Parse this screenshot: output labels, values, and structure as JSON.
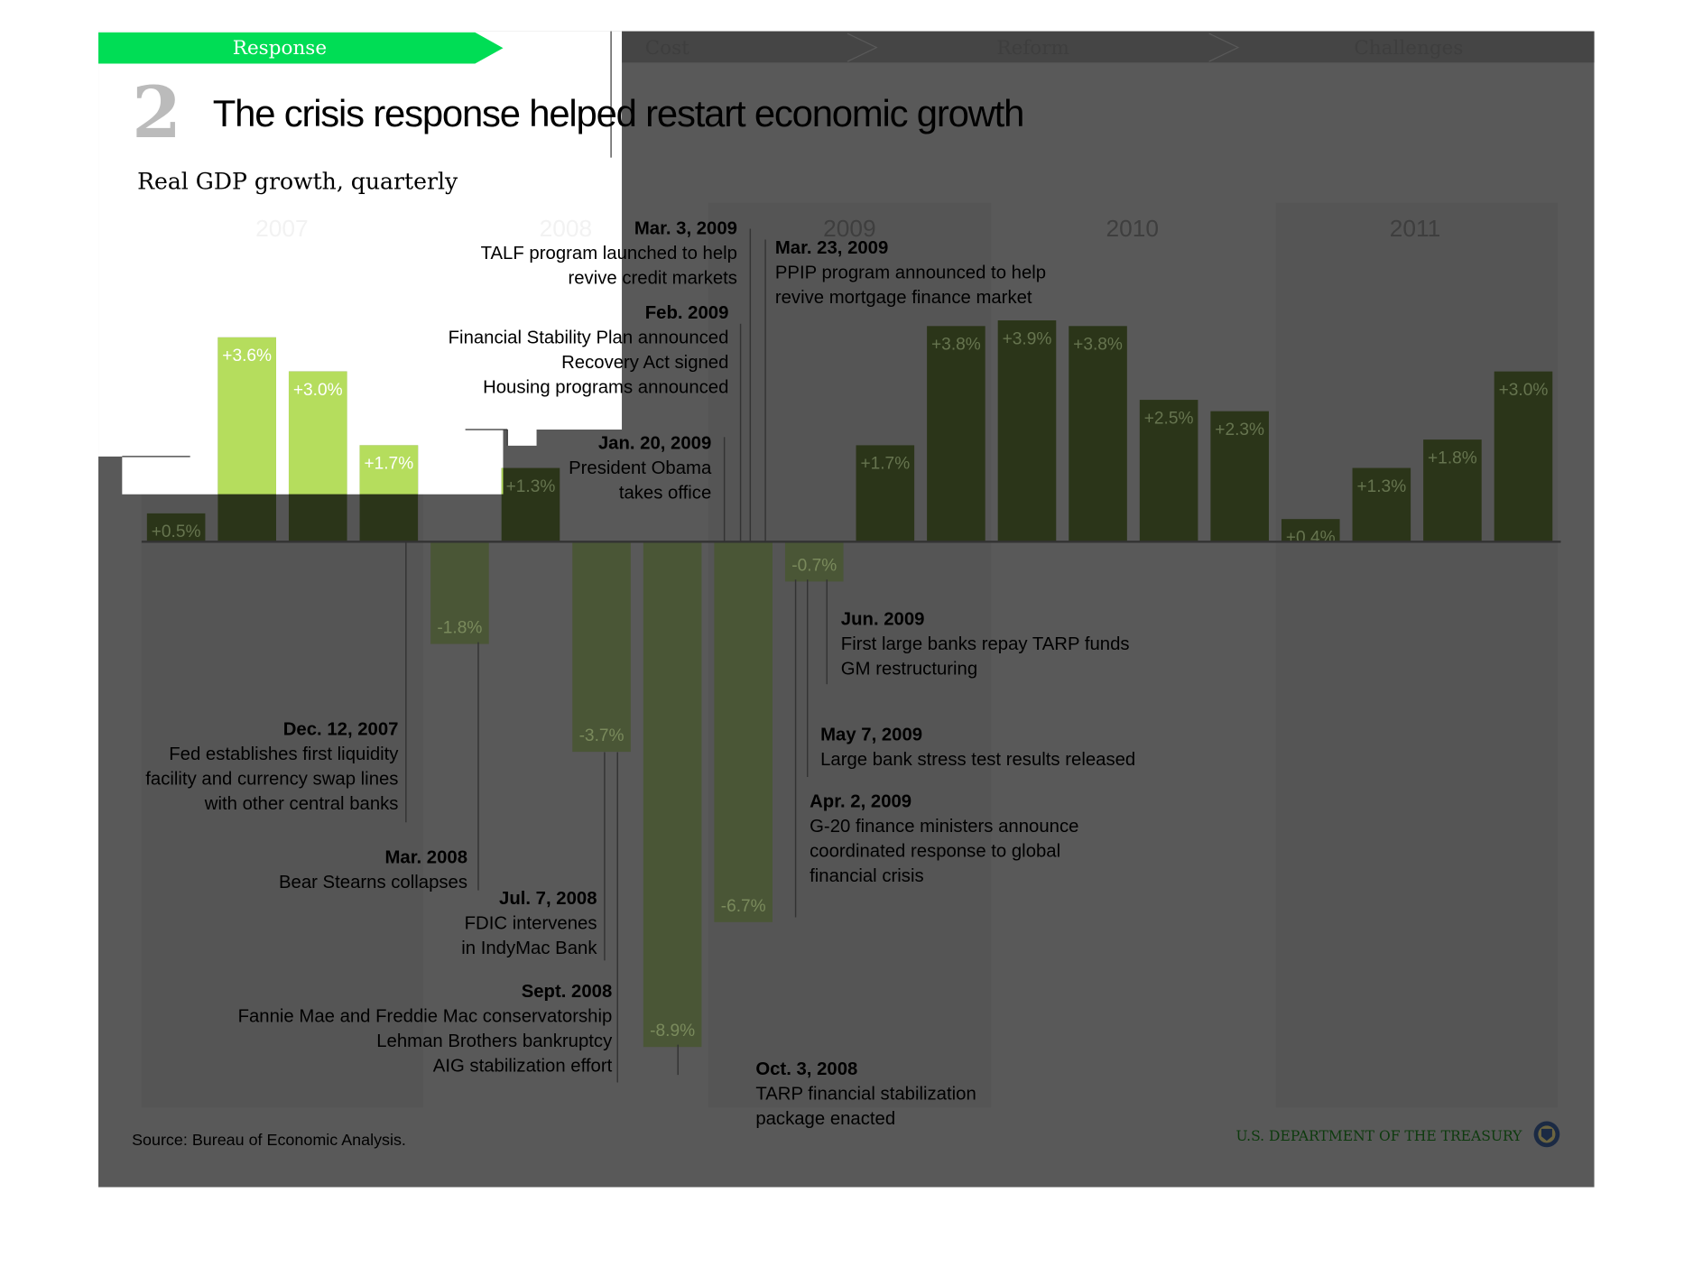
{
  "nav": {
    "tabs": [
      {
        "label": "Response",
        "active": true
      },
      {
        "label": "Cost",
        "active": false
      },
      {
        "label": "Reform",
        "active": false
      },
      {
        "label": "Challenges",
        "active": false
      }
    ]
  },
  "header": {
    "number": "2",
    "title": "The crisis response helped restart economic growth",
    "subtitle": "Real GDP growth, quarterly"
  },
  "colors": {
    "tab_active": "#00dd55",
    "bar_highlight": "#b5dd5d",
    "bar_positive": "#2b3519",
    "bar_negative": "#4a5636",
    "overlay": "#595959"
  },
  "chart_data": {
    "type": "bar",
    "title": "Real GDP growth, quarterly",
    "xlabel": "",
    "ylabel": "",
    "unit": "%",
    "ylim": [
      -9,
      4
    ],
    "years": [
      "2007",
      "2008",
      "2009",
      "2010",
      "2011"
    ],
    "categories": [
      "2007 Q1",
      "2007 Q2",
      "2007 Q3",
      "2007 Q4",
      "2008 Q1",
      "2008 Q2",
      "2008 Q3",
      "2008 Q4",
      "2009 Q1",
      "2009 Q2",
      "2009 Q3",
      "2009 Q4",
      "2010 Q1",
      "2010 Q2",
      "2010 Q3",
      "2010 Q4",
      "2011 Q1",
      "2011 Q2",
      "2011 Q3",
      "2011 Q4"
    ],
    "values": [
      0.5,
      3.6,
      3.0,
      1.7,
      -1.8,
      1.3,
      -3.7,
      -8.9,
      -6.7,
      -0.7,
      1.7,
      3.8,
      3.9,
      3.8,
      2.5,
      2.3,
      0.4,
      1.3,
      1.8,
      3.0
    ],
    "labels": [
      "+0.5%",
      "+3.6%",
      "+3.0%",
      "+1.7%",
      "-1.8%",
      "+1.3%",
      "-3.7%",
      "-8.9%",
      "-6.7%",
      "-0.7%",
      "+1.7%",
      "+3.8%",
      "+3.9%",
      "+3.8%",
      "+2.5%",
      "+2.3%",
      "+0.4%",
      "+1.3%",
      "+1.8%",
      "+3.0%"
    ],
    "annotations": [
      {
        "date": "Dec. 12, 2007",
        "lines": [
          "Fed establishes first liquidity",
          "facility and currency swap lines",
          "with other central banks"
        ]
      },
      {
        "date": "Mar. 2008",
        "lines": [
          "Bear Stearns collapses"
        ]
      },
      {
        "date": "Jul. 7, 2008",
        "lines": [
          "FDIC intervenes",
          "in IndyMac Bank"
        ]
      },
      {
        "date": "Sept. 2008",
        "lines": [
          "Fannie Mae and Freddie Mac conservatorship",
          "Lehman Brothers bankruptcy",
          "AIG stabilization effort"
        ]
      },
      {
        "date": "Oct. 3, 2008",
        "lines": [
          "TARP financial stabilization",
          "package enacted"
        ]
      },
      {
        "date": "Jan. 20, 2009",
        "lines": [
          "President Obama",
          "takes office"
        ]
      },
      {
        "date": "Feb. 2009",
        "lines": [
          "Financial Stability Plan announced",
          "Recovery Act signed",
          "Housing programs announced"
        ]
      },
      {
        "date": "Mar. 3, 2009",
        "lines": [
          "TALF program launched to help",
          "revive credit markets"
        ]
      },
      {
        "date": "Mar. 23, 2009",
        "lines": [
          "PPIP program announced to help",
          "revive mortgage finance market"
        ]
      },
      {
        "date": "Apr. 2, 2009",
        "lines": [
          "G-20 finance ministers announce",
          "coordinated response to global",
          "financial crisis"
        ]
      },
      {
        "date": "May 7, 2009",
        "lines": [
          "Large bank stress test results released"
        ]
      },
      {
        "date": "Jun. 2009",
        "lines": [
          "First large banks repay TARP funds",
          "GM restructuring"
        ]
      }
    ]
  },
  "footer": {
    "source": "Source: Bureau of Economic Analysis.",
    "org": "U.S. DEPARTMENT OF THE TREASURY",
    "seal_icon": "treasury-seal-icon"
  }
}
